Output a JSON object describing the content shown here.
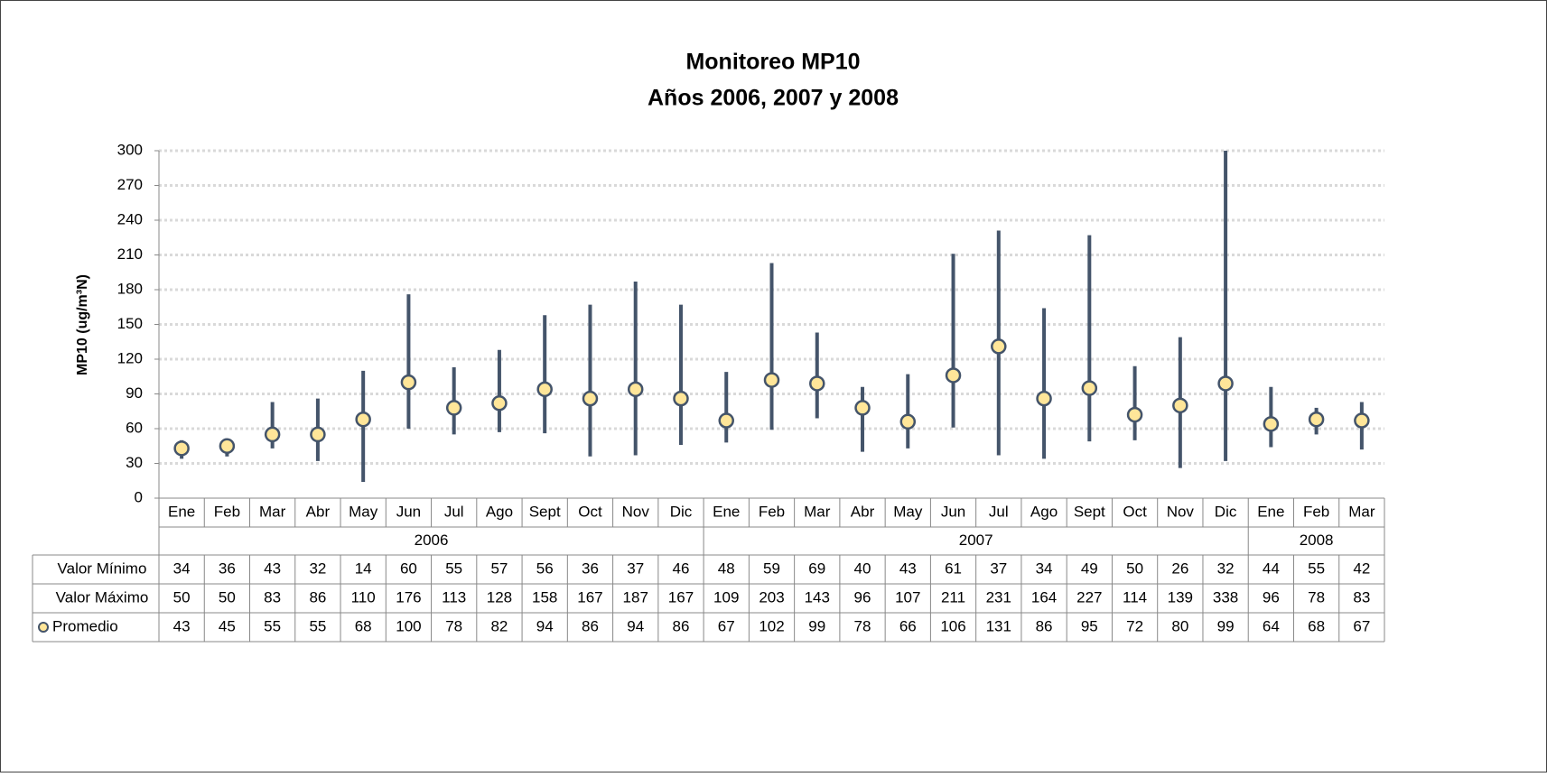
{
  "chart_data": {
    "type": "hi-lo",
    "title": "Monitoreo MP10",
    "subtitle": "Años 2006, 2007 y 2008",
    "y_label": "MP10 (ug/m³N)",
    "groups": [
      {
        "name": "2006",
        "categories": [
          "Ene",
          "Feb",
          "Mar",
          "Abr",
          "May",
          "Jun",
          "Jul",
          "Ago",
          "Sept",
          "Oct",
          "Nov",
          "Dic"
        ]
      },
      {
        "name": "2007",
        "categories": [
          "Ene",
          "Feb",
          "Mar",
          "Abr",
          "May",
          "Jun",
          "Jul",
          "Ago",
          "Sept",
          "Oct",
          "Nov",
          "Dic"
        ]
      },
      {
        "name": "2008",
        "categories": [
          "Ene",
          "Feb",
          "Mar"
        ]
      }
    ],
    "line_color": "#44546a",
    "series": [
      {
        "name": "Valor Mínimo",
        "values": [
          34,
          36,
          43,
          32,
          14,
          60,
          55,
          57,
          56,
          36,
          37,
          46,
          48,
          59,
          69,
          40,
          43,
          61,
          37,
          34,
          49,
          50,
          26,
          32,
          44,
          55,
          42
        ]
      },
      {
        "name": "Valor Máximo",
        "values": [
          50,
          50,
          83,
          86,
          110,
          176,
          113,
          128,
          158,
          167,
          187,
          167,
          109,
          203,
          143,
          96,
          107,
          211,
          231,
          164,
          227,
          114,
          139,
          338,
          96,
          78,
          83
        ]
      },
      {
        "name": "Promedio",
        "color": "#ffe699",
        "values": [
          43,
          45,
          55,
          55,
          68,
          100,
          78,
          82,
          94,
          86,
          94,
          86,
          67,
          102,
          99,
          78,
          66,
          106,
          131,
          86,
          95,
          72,
          80,
          99,
          64,
          68,
          67
        ]
      }
    ],
    "ylim": [
      0,
      300
    ],
    "yticks": [
      0,
      30,
      60,
      90,
      120,
      150,
      180,
      210,
      240,
      270,
      300
    ],
    "grid": true
  }
}
